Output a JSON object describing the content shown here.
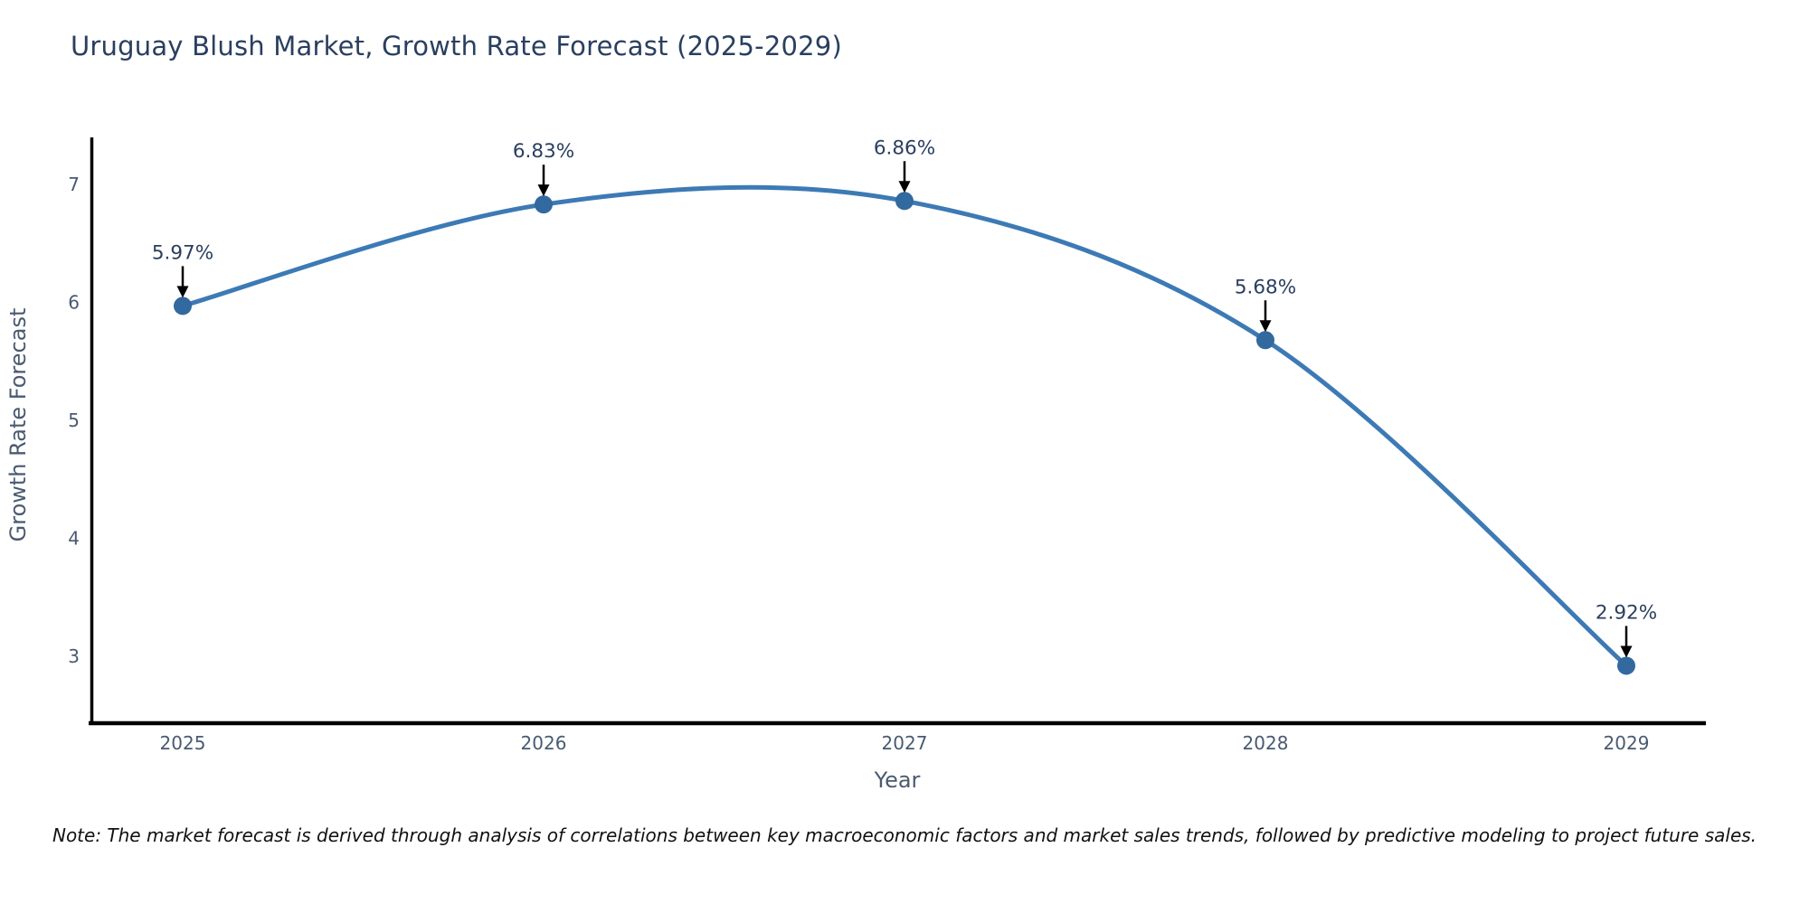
{
  "page": {
    "title": "Uruguay Blush Market, Growth Rate Forecast (2025-2029)",
    "note": "Note: The market forecast is derived through analysis of correlations between key macroeconomic factors and market sales trends, followed by predictive modeling to project future sales."
  },
  "chart_data": {
    "type": "line",
    "title": "Uruguay Blush Market, Growth Rate Forecast (2025-2029)",
    "line_shape": "spline",
    "grid": false,
    "legend": "none",
    "categories": [
      "2025",
      "2026",
      "2027",
      "2028",
      "2029"
    ],
    "values": [
      5.97,
      6.83,
      6.86,
      5.68,
      2.92
    ],
    "point_labels": [
      "5.97%",
      "6.83%",
      "6.86%",
      "5.68%",
      "2.92%"
    ],
    "xlabel": "Year",
    "ylabel": "Growth Rate Forecast",
    "yticks": [
      3,
      4,
      5,
      6,
      7
    ],
    "ylim": [
      2.43,
      7.38
    ],
    "annotation_style": "label-with-down-arrow",
    "colors": {
      "line": "#3d7ab5",
      "marker": "#32699e",
      "axis": "#000000",
      "title": "#2a3f5f",
      "tick_label": "#4a5a70",
      "axis_title": "#4a5a70",
      "annotation_text": "#2a3f5f",
      "arrow": "#000000",
      "background": "#ffffff"
    }
  }
}
